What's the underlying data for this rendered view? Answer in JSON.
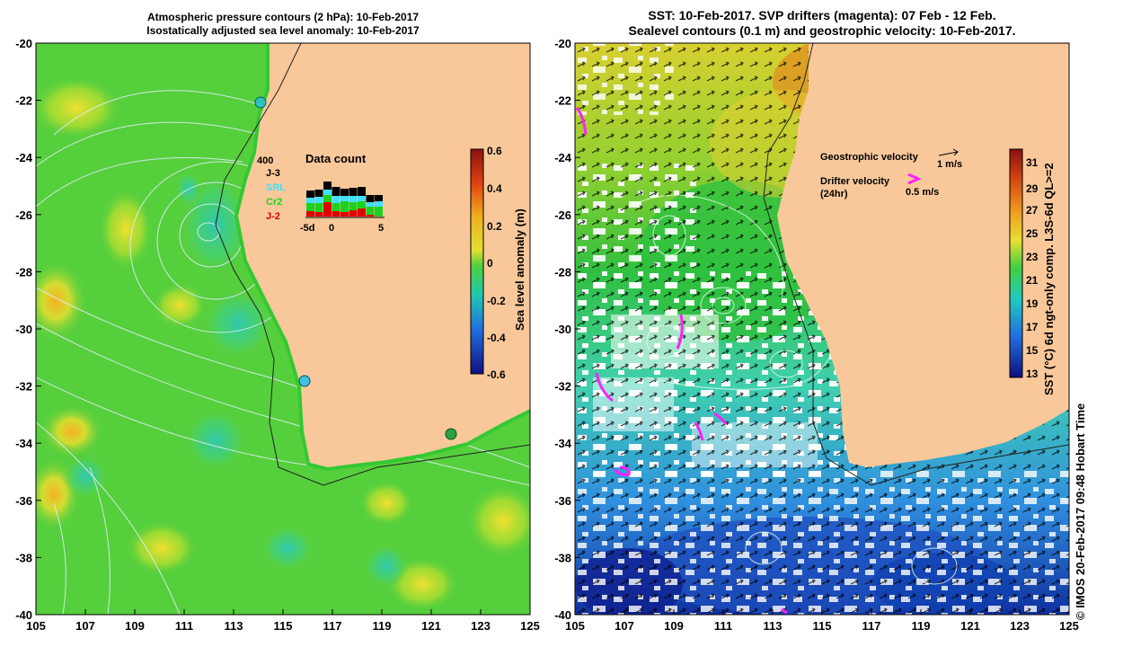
{
  "left_panel": {
    "title_line1": "Atmospheric pressure contours (2 hPa): 10-Feb-2017",
    "title_line2": "Isostatically adjusted sea level anomaly: 10-Feb-2017",
    "colorbar_label": "Sea level anomaly (m)",
    "colorbar_ticks": [
      "0.6",
      "0.4",
      "0.2",
      "0",
      "-0.2",
      "-0.4",
      "-0.6"
    ],
    "inset": {
      "title": "Data count",
      "max_label": "400",
      "legend": [
        "J-3",
        "SRL",
        "Cr2",
        "J-2"
      ],
      "legend_colors": [
        "#000000",
        "#40e0ff",
        "#20d020",
        "#e00000"
      ],
      "x_ticks": [
        "-5d",
        "0",
        "5"
      ]
    }
  },
  "right_panel": {
    "title_line1": "SST: 10-Feb-2017. SVP drifters (magenta): 07 Feb - 12 Feb.",
    "title_line2": "Sealevel contours (0.1 m) and geostrophic velocity: 10-Feb-2017.",
    "geo_velocity_label": "Geostrophic velocity",
    "geo_velocity_scale": "1 m/s",
    "drifter_label_line1": "Drifter velocity",
    "drifter_label_line2": "(24hr)",
    "drifter_scale": "0.5 m/s",
    "colorbar_label": "SST (°C) 6d ngt-only comp. L3S-6d QL>=2",
    "colorbar_ticks": [
      "31",
      "29",
      "27",
      "25",
      "23",
      "21",
      "19",
      "17",
      "15",
      "13"
    ]
  },
  "lat_ticks": [
    "-20",
    "-22",
    "-24",
    "-26",
    "-28",
    "-30",
    "-32",
    "-34",
    "-36",
    "-38",
    "-40"
  ],
  "lon_ticks": [
    "105",
    "107",
    "109",
    "111",
    "113",
    "115",
    "117",
    "119",
    "121",
    "123",
    "125"
  ],
  "credit": "© IMOS 20-Feb-2017 09:48 Hobart Time",
  "colors": {
    "land": "#f9c89a",
    "ocean_green": "#4fd040",
    "magenta": "#ff20ff"
  }
}
